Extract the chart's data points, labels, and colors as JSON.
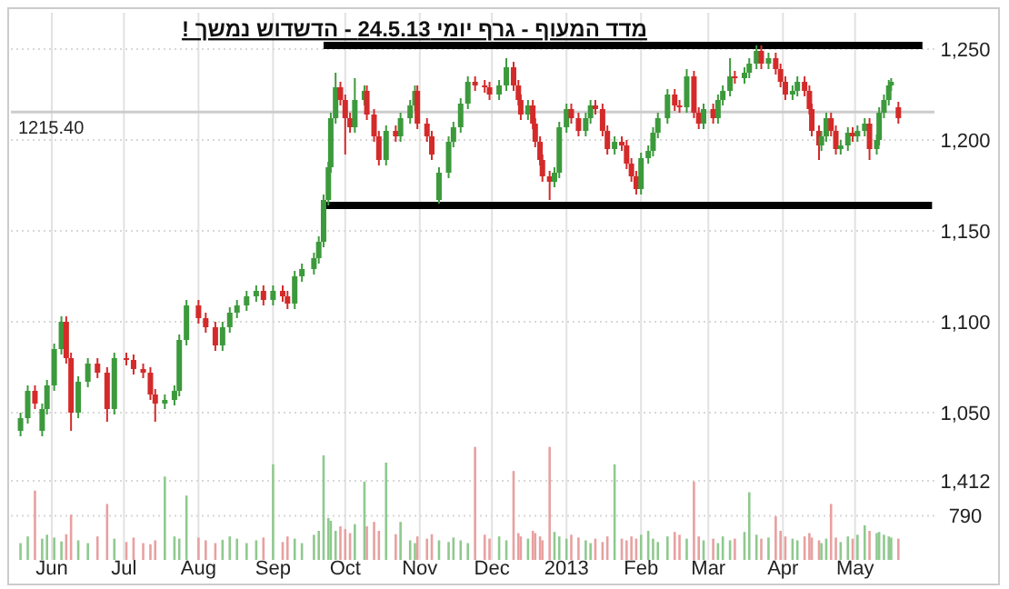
{
  "chart_data": [
    {
      "type": "candlestick",
      "title": "מדד המעוף - גרף יומי 24.5.13 - הדשדוש נמשך !",
      "x": [
        "2012-05-23",
        "2012-05-26",
        "2012-05-29",
        "2012-06-01",
        "2012-06-03",
        "2012-06-06",
        "2012-06-09",
        "2012-06-11",
        "2012-06-13",
        "2012-06-16",
        "2012-06-20",
        "2012-06-24",
        "2012-06-28",
        "2012-07-01",
        "2012-07-06",
        "2012-07-09",
        "2012-07-13",
        "2012-07-16",
        "2012-07-18",
        "2012-07-22",
        "2012-07-26",
        "2012-07-28",
        "2012-07-31",
        "2012-08-05",
        "2012-08-08",
        "2012-08-12",
        "2012-08-15",
        "2012-08-18",
        "2012-08-21",
        "2012-08-25",
        "2012-08-29",
        "2012-09-01",
        "2012-09-05",
        "2012-09-09",
        "2012-09-11",
        "2012-09-14",
        "2012-09-17",
        "2012-09-22",
        "2012-09-24",
        "2012-09-26",
        "2012-09-28",
        "2012-09-29",
        "2012-10-01",
        "2012-10-03",
        "2012-10-05",
        "2012-10-07",
        "2012-10-09",
        "2012-10-13",
        "2012-10-14",
        "2012-10-17",
        "2012-10-19",
        "2012-10-22",
        "2012-10-26",
        "2012-10-28",
        "2012-11-01",
        "2012-11-03",
        "2012-11-04",
        "2012-11-08",
        "2012-11-10",
        "2012-11-13",
        "2012-11-17",
        "2012-11-19",
        "2012-11-22",
        "2012-11-25",
        "2012-11-28",
        "2012-12-02",
        "2012-12-04",
        "2012-12-08",
        "2012-12-11",
        "2012-12-14",
        "2012-12-16",
        "2012-12-17",
        "2012-12-20",
        "2012-12-22",
        "2012-12-23",
        "2012-12-25",
        "2012-12-26",
        "2012-12-29",
        "2012-12-31",
        "2013-01-02",
        "2013-01-05",
        "2013-01-07",
        "2013-01-10",
        "2013-01-13",
        "2013-01-15",
        "2013-01-17",
        "2013-01-20",
        "2013-01-22",
        "2013-01-25",
        "2013-01-28",
        "2013-01-30",
        "2013-02-01",
        "2013-02-03",
        "2013-02-05",
        "2013-02-08",
        "2013-02-10",
        "2013-02-12",
        "2013-02-16",
        "2013-02-19",
        "2013-02-21",
        "2013-02-24",
        "2013-02-27",
        "2013-03-01",
        "2013-03-03",
        "2013-03-07",
        "2013-03-09",
        "2013-03-11",
        "2013-03-14",
        "2013-03-16",
        "2013-03-20",
        "2013-03-22",
        "2013-03-25",
        "2013-03-27",
        "2013-03-30",
        "2013-04-02",
        "2013-04-04",
        "2013-04-06",
        "2013-04-09",
        "2013-04-11",
        "2013-04-14",
        "2013-04-16",
        "2013-04-17",
        "2013-04-20",
        "2013-04-21",
        "2013-04-23",
        "2013-04-25",
        "2013-04-27",
        "2013-04-29",
        "2013-05-02",
        "2013-05-04",
        "2013-05-06",
        "2013-05-09",
        "2013-05-11",
        "2013-05-14",
        "2013-05-15",
        "2013-05-17",
        "2013-05-19",
        "2013-05-20",
        "2013-05-23"
      ],
      "ohlc": [
        [
          1040,
          1050,
          1037,
          1047
        ],
        [
          1047,
          1065,
          1044,
          1062
        ],
        [
          1062,
          1065,
          1052,
          1055
        ],
        [
          1040,
          1055,
          1037,
          1052
        ],
        [
          1052,
          1068,
          1049,
          1065
        ],
        [
          1065,
          1088,
          1062,
          1085
        ],
        [
          1085,
          1103,
          1082,
          1100
        ],
        [
          1100,
          1103,
          1077,
          1080
        ],
        [
          1080,
          1083,
          1040,
          1050
        ],
        [
          1050,
          1070,
          1047,
          1067
        ],
        [
          1067,
          1080,
          1064,
          1077
        ],
        [
          1077,
          1080,
          1069,
          1072
        ],
        [
          1072,
          1075,
          1045,
          1052
        ],
        [
          1052,
          1083,
          1049,
          1080
        ],
        [
          1080,
          1083,
          1076,
          1079
        ],
        [
          1079,
          1082,
          1071,
          1074
        ],
        [
          1074,
          1077,
          1069,
          1072
        ],
        [
          1072,
          1075,
          1057,
          1060
        ],
        [
          1060,
          1063,
          1045,
          1055
        ],
        [
          1055,
          1060,
          1052,
          1057
        ],
        [
          1057,
          1065,
          1054,
          1062
        ],
        [
          1062,
          1093,
          1059,
          1090
        ],
        [
          1090,
          1112,
          1087,
          1109
        ],
        [
          1109,
          1112,
          1099,
          1102
        ],
        [
          1102,
          1105,
          1094,
          1097
        ],
        [
          1097,
          1100,
          1084,
          1087
        ],
        [
          1087,
          1100,
          1084,
          1097
        ],
        [
          1097,
          1108,
          1094,
          1105
        ],
        [
          1105,
          1112,
          1102,
          1109
        ],
        [
          1109,
          1117,
          1106,
          1114
        ],
        [
          1114,
          1120,
          1111,
          1117
        ],
        [
          1117,
          1120,
          1109,
          1112
        ],
        [
          1112,
          1120,
          1109,
          1117
        ],
        [
          1117,
          1120,
          1111,
          1114
        ],
        [
          1114,
          1117,
          1107,
          1110
        ],
        [
          1110,
          1128,
          1107,
          1125
        ],
        [
          1125,
          1132,
          1122,
          1129
        ],
        [
          1129,
          1138,
          1126,
          1135
        ],
        [
          1135,
          1147,
          1132,
          1144
        ],
        [
          1144,
          1170,
          1141,
          1167
        ],
        [
          1167,
          1188,
          1164,
          1185
        ],
        [
          1185,
          1215,
          1182,
          1212
        ],
        [
          1212,
          1237,
          1209,
          1229
        ],
        [
          1229,
          1232,
          1219,
          1222
        ],
        [
          1222,
          1225,
          1192,
          1212
        ],
        [
          1212,
          1215,
          1204,
          1207
        ],
        [
          1207,
          1234,
          1204,
          1222
        ],
        [
          1222,
          1230,
          1219,
          1227
        ],
        [
          1227,
          1230,
          1211,
          1214
        ],
        [
          1214,
          1217,
          1199,
          1202
        ],
        [
          1202,
          1205,
          1186,
          1189
        ],
        [
          1189,
          1208,
          1186,
          1205
        ],
        [
          1205,
          1208,
          1199,
          1202
        ],
        [
          1202,
          1215,
          1199,
          1212
        ],
        [
          1212,
          1222,
          1209,
          1219
        ],
        [
          1219,
          1230,
          1216,
          1227
        ],
        [
          1227,
          1230,
          1206,
          1209
        ],
        [
          1209,
          1212,
          1199,
          1202
        ],
        [
          1202,
          1205,
          1189,
          1192
        ],
        [
          1167,
          1185,
          1165,
          1182
        ],
        [
          1182,
          1202,
          1179,
          1199
        ],
        [
          1199,
          1210,
          1196,
          1207
        ],
        [
          1207,
          1223,
          1204,
          1220
        ],
        [
          1220,
          1235,
          1217,
          1232
        ],
        [
          1232,
          1235,
          1227,
          1230
        ],
        [
          1230,
          1233,
          1226,
          1229
        ],
        [
          1229,
          1232,
          1222,
          1225
        ],
        [
          1225,
          1233,
          1222,
          1230
        ],
        [
          1230,
          1245,
          1227,
          1240
        ],
        [
          1240,
          1243,
          1227,
          1230
        ],
        [
          1230,
          1233,
          1219,
          1222
        ],
        [
          1222,
          1225,
          1211,
          1214
        ],
        [
          1214,
          1222,
          1211,
          1219
        ],
        [
          1219,
          1222,
          1206,
          1209
        ],
        [
          1209,
          1212,
          1196,
          1199
        ],
        [
          1199,
          1202,
          1186,
          1189
        ],
        [
          1189,
          1192,
          1177,
          1180
        ],
        [
          1180,
          1183,
          1167,
          1177
        ],
        [
          1177,
          1185,
          1174,
          1182
        ],
        [
          1182,
          1210,
          1179,
          1207
        ],
        [
          1207,
          1220,
          1204,
          1217
        ],
        [
          1217,
          1220,
          1209,
          1212
        ],
        [
          1212,
          1215,
          1202,
          1205
        ],
        [
          1205,
          1215,
          1202,
          1212
        ],
        [
          1212,
          1222,
          1209,
          1219
        ],
        [
          1219,
          1222,
          1214,
          1217
        ],
        [
          1217,
          1220,
          1202,
          1205
        ],
        [
          1205,
          1208,
          1192,
          1195
        ],
        [
          1195,
          1202,
          1192,
          1199
        ],
        [
          1199,
          1202,
          1194,
          1197
        ],
        [
          1197,
          1200,
          1184,
          1187
        ],
        [
          1187,
          1190,
          1177,
          1180
        ],
        [
          1180,
          1183,
          1170,
          1173
        ],
        [
          1173,
          1193,
          1170,
          1190
        ],
        [
          1190,
          1197,
          1187,
          1194
        ],
        [
          1194,
          1207,
          1191,
          1204
        ],
        [
          1204,
          1215,
          1201,
          1212
        ],
        [
          1212,
          1228,
          1209,
          1225
        ],
        [
          1225,
          1228,
          1216,
          1219
        ],
        [
          1219,
          1222,
          1215,
          1218
        ],
        [
          1218,
          1239,
          1215,
          1235
        ],
        [
          1235,
          1238,
          1212,
          1215
        ],
        [
          1215,
          1218,
          1206,
          1209
        ],
        [
          1209,
          1220,
          1206,
          1217
        ],
        [
          1217,
          1220,
          1209,
          1212
        ],
        [
          1212,
          1225,
          1209,
          1222
        ],
        [
          1222,
          1230,
          1219,
          1227
        ],
        [
          1227,
          1245,
          1224,
          1235
        ],
        [
          1235,
          1238,
          1231,
          1234
        ],
        [
          1234,
          1240,
          1231,
          1237
        ],
        [
          1237,
          1245,
          1234,
          1242
        ],
        [
          1242,
          1252,
          1239,
          1249
        ],
        [
          1249,
          1252,
          1239,
          1242
        ],
        [
          1242,
          1248,
          1239,
          1245
        ],
        [
          1245,
          1248,
          1236,
          1239
        ],
        [
          1239,
          1242,
          1229,
          1232
        ],
        [
          1232,
          1235,
          1222,
          1225
        ],
        [
          1225,
          1230,
          1222,
          1227
        ],
        [
          1227,
          1235,
          1224,
          1232
        ],
        [
          1232,
          1235,
          1224,
          1227
        ],
        [
          1227,
          1230,
          1214,
          1217
        ],
        [
          1217,
          1220,
          1202,
          1205
        ],
        [
          1205,
          1208,
          1189,
          1197
        ],
        [
          1197,
          1205,
          1194,
          1202
        ],
        [
          1202,
          1215,
          1199,
          1212
        ],
        [
          1212,
          1215,
          1202,
          1205
        ],
        [
          1205,
          1208,
          1192,
          1195
        ],
        [
          1195,
          1200,
          1192,
          1197
        ],
        [
          1197,
          1207,
          1194,
          1204
        ],
        [
          1204,
          1207,
          1199,
          1202
        ],
        [
          1202,
          1208,
          1199,
          1205
        ],
        [
          1205,
          1212,
          1202,
          1209
        ],
        [
          1209,
          1212,
          1189,
          1195
        ],
        [
          1195,
          1203,
          1192,
          1200
        ],
        [
          1200,
          1218,
          1197,
          1215
        ],
        [
          1215,
          1225,
          1212,
          1222
        ],
        [
          1222,
          1233,
          1219,
          1230
        ],
        [
          1230,
          1234,
          1227,
          1232
        ],
        [
          1218,
          1221,
          1209,
          1212
        ]
      ],
      "colors": [
        "#3c9a3c",
        "#3c9a3c",
        "#d42a2a",
        "#3c9a3c",
        "#3c9a3c",
        "#3c9a3c",
        "#3c9a3c",
        "#d42a2a",
        "#d42a2a",
        "#3c9a3c",
        "#3c9a3c",
        "#d42a2a",
        "#d42a2a",
        "#3c9a3c",
        "#d42a2a",
        "#d42a2a",
        "#d42a2a",
        "#d42a2a",
        "#d42a2a",
        "#3c9a3c",
        "#3c9a3c",
        "#3c9a3c",
        "#3c9a3c",
        "#d42a2a",
        "#d42a2a",
        "#d42a2a",
        "#3c9a3c",
        "#3c9a3c",
        "#3c9a3c",
        "#3c9a3c",
        "#3c9a3c",
        "#d42a2a",
        "#3c9a3c",
        "#d42a2a",
        "#d42a2a",
        "#3c9a3c",
        "#3c9a3c",
        "#3c9a3c",
        "#3c9a3c",
        "#3c9a3c",
        "#3c9a3c",
        "#3c9a3c",
        "#3c9a3c",
        "#d42a2a",
        "#d42a2a",
        "#d42a2a",
        "#3c9a3c",
        "#3c9a3c",
        "#d42a2a",
        "#d42a2a",
        "#d42a2a",
        "#3c9a3c",
        "#d42a2a",
        "#3c9a3c",
        "#3c9a3c",
        "#3c9a3c",
        "#d42a2a",
        "#d42a2a",
        "#d42a2a",
        "#3c9a3c",
        "#3c9a3c",
        "#3c9a3c",
        "#3c9a3c",
        "#3c9a3c",
        "#d42a2a",
        "#d42a2a",
        "#d42a2a",
        "#3c9a3c",
        "#3c9a3c",
        "#d42a2a",
        "#d42a2a",
        "#d42a2a",
        "#3c9a3c",
        "#d42a2a",
        "#d42a2a",
        "#d42a2a",
        "#d42a2a",
        "#d42a2a",
        "#3c9a3c",
        "#3c9a3c",
        "#3c9a3c",
        "#d42a2a",
        "#d42a2a",
        "#3c9a3c",
        "#3c9a3c",
        "#d42a2a",
        "#d42a2a",
        "#d42a2a",
        "#3c9a3c",
        "#d42a2a",
        "#d42a2a",
        "#d42a2a",
        "#d42a2a",
        "#3c9a3c",
        "#3c9a3c",
        "#3c9a3c",
        "#3c9a3c",
        "#3c9a3c",
        "#d42a2a",
        "#d42a2a",
        "#3c9a3c",
        "#d42a2a",
        "#d42a2a",
        "#3c9a3c",
        "#d42a2a",
        "#3c9a3c",
        "#3c9a3c",
        "#3c9a3c",
        "#d42a2a",
        "#3c9a3c",
        "#3c9a3c",
        "#3c9a3c",
        "#d42a2a",
        "#3c9a3c",
        "#d42a2a",
        "#d42a2a",
        "#d42a2a",
        "#3c9a3c",
        "#3c9a3c",
        "#d42a2a",
        "#d42a2a",
        "#d42a2a",
        "#d42a2a",
        "#3c9a3c",
        "#3c9a3c",
        "#d42a2a",
        "#d42a2a",
        "#3c9a3c",
        "#3c9a3c",
        "#d42a2a",
        "#3c9a3c",
        "#3c9a3c",
        "#d42a2a",
        "#3c9a3c",
        "#3c9a3c",
        "#3c9a3c",
        "#3c9a3c",
        "#3c9a3c",
        "#d42a2a"
      ],
      "series": [
        {
          "type": "line",
          "x": [
            "2012-09-26",
            "2013-06-02"
          ],
          "values": [
            1252,
            1252
          ],
          "color": "#000000"
        },
        {
          "type": "line",
          "x": [
            "2012-09-25",
            "2013-06-06"
          ],
          "values": [
            1164,
            1164
          ],
          "color": "#000000"
        }
      ],
      "ref_lines": [
        {
          "axis": "y",
          "value": 1215.4,
          "label": "1215.40",
          "color": "#cccccc"
        }
      ],
      "xlim": [
        "2012-05-19",
        "2013-06-07"
      ],
      "ylim": [
        1035,
        1270
      ],
      "xticks": [
        {
          "value": "2012-06-05",
          "label": null
        },
        {
          "value": "2012-07-05",
          "label": null
        },
        {
          "value": "2012-08-05",
          "label": null
        },
        {
          "value": "2012-09-05",
          "label": null
        },
        {
          "value": "2012-10-05",
          "label": null
        },
        {
          "value": "2012-11-05",
          "label": null
        },
        {
          "value": "2012-12-05",
          "label": null
        },
        {
          "value": "2013-01-05",
          "label": null
        },
        {
          "value": "2013-02-05",
          "label": null
        },
        {
          "value": "2013-03-05",
          "label": null
        },
        {
          "value": "2013-04-05",
          "label": null
        },
        {
          "value": "2013-05-05",
          "label": null
        }
      ],
      "yticks": [
        {
          "value": 1050,
          "label": "1,050"
        },
        {
          "value": 1100,
          "label": "1,100"
        },
        {
          "value": 1150,
          "label": "1,150"
        },
        {
          "value": 1200,
          "label": "1,200"
        },
        {
          "value": 1250,
          "label": "1,250"
        }
      ],
      "grid": true,
      "tick_labels": "y"
    },
    {
      "type": "bar",
      "x": [
        "2012-05-23",
        "2012-05-26",
        "2012-05-29",
        "2012-06-01",
        "2012-06-03",
        "2012-06-06",
        "2012-06-09",
        "2012-06-11",
        "2012-06-13",
        "2012-06-16",
        "2012-06-20",
        "2012-06-24",
        "2012-06-28",
        "2012-07-01",
        "2012-07-06",
        "2012-07-09",
        "2012-07-13",
        "2012-07-16",
        "2012-07-18",
        "2012-07-22",
        "2012-07-26",
        "2012-07-28",
        "2012-07-31",
        "2012-08-05",
        "2012-08-08",
        "2012-08-12",
        "2012-08-15",
        "2012-08-18",
        "2012-08-21",
        "2012-08-25",
        "2012-08-29",
        "2012-09-01",
        "2012-09-05",
        "2012-09-09",
        "2012-09-11",
        "2012-09-14",
        "2012-09-17",
        "2012-09-22",
        "2012-09-24",
        "2012-09-26",
        "2012-09-28",
        "2012-09-29",
        "2012-10-01",
        "2012-10-03",
        "2012-10-05",
        "2012-10-07",
        "2012-10-09",
        "2012-10-13",
        "2012-10-14",
        "2012-10-17",
        "2012-10-19",
        "2012-10-22",
        "2012-10-26",
        "2012-10-28",
        "2012-11-01",
        "2012-11-03",
        "2012-11-04",
        "2012-11-08",
        "2012-11-10",
        "2012-11-13",
        "2012-11-17",
        "2012-11-19",
        "2012-11-22",
        "2012-11-25",
        "2012-11-28",
        "2012-12-02",
        "2012-12-04",
        "2012-12-08",
        "2012-12-11",
        "2012-12-14",
        "2012-12-16",
        "2012-12-17",
        "2012-12-20",
        "2012-12-22",
        "2012-12-23",
        "2012-12-25",
        "2012-12-26",
        "2012-12-29",
        "2012-12-31",
        "2013-01-02",
        "2013-01-05",
        "2013-01-07",
        "2013-01-10",
        "2013-01-13",
        "2013-01-15",
        "2013-01-17",
        "2013-01-20",
        "2013-01-22",
        "2013-01-25",
        "2013-01-28",
        "2013-01-30",
        "2013-02-01",
        "2013-02-03",
        "2013-02-05",
        "2013-02-08",
        "2013-02-10",
        "2013-02-12",
        "2013-02-16",
        "2013-02-19",
        "2013-02-21",
        "2013-02-24",
        "2013-02-27",
        "2013-03-01",
        "2013-03-03",
        "2013-03-07",
        "2013-03-09",
        "2013-03-11",
        "2013-03-14",
        "2013-03-16",
        "2013-03-20",
        "2013-03-22",
        "2013-03-25",
        "2013-03-27",
        "2013-03-30",
        "2013-04-02",
        "2013-04-04",
        "2013-04-06",
        "2013-04-09",
        "2013-04-11",
        "2013-04-14",
        "2013-04-16",
        "2013-04-17",
        "2013-04-20",
        "2013-04-21",
        "2013-04-23",
        "2013-04-25",
        "2013-04-27",
        "2013-04-29",
        "2013-05-02",
        "2013-05-04",
        "2013-05-06",
        "2013-05-09",
        "2013-05-11",
        "2013-05-14",
        "2013-05-15",
        "2013-05-17",
        "2013-05-19",
        "2013-05-20",
        "2013-05-23"
      ],
      "values": [
        300,
        420,
        1240,
        380,
        450,
        400,
        330,
        460,
        810,
        350,
        300,
        420,
        1000,
        380,
        320,
        400,
        300,
        280,
        350,
        1490,
        420,
        380,
        1150,
        400,
        350,
        300,
        360,
        420,
        380,
        300,
        350,
        400,
        1710,
        320,
        420,
        380,
        300,
        450,
        520,
        1870,
        750,
        700,
        520,
        600,
        550,
        480,
        640,
        1400,
        600,
        680,
        520,
        1740,
        460,
        680,
        350,
        300,
        420,
        380,
        460,
        350,
        320,
        400,
        350,
        300,
        2020,
        450,
        380,
        420,
        350,
        1590,
        480,
        420,
        380,
        520,
        480,
        420,
        350,
        2020,
        500,
        420,
        380,
        450,
        400,
        350,
        300,
        380,
        320,
        420,
        1710,
        380,
        350,
        420,
        380,
        450,
        520,
        380,
        320,
        420,
        500,
        450,
        380,
        1400,
        420,
        350,
        380,
        300,
        420,
        350,
        380,
        500,
        1210,
        450,
        380,
        400,
        780,
        520,
        420,
        380,
        350,
        420,
        480,
        400,
        350,
        300,
        380,
        1000,
        400,
        320,
        420,
        380,
        450,
        620,
        520,
        480,
        500,
        450,
        420,
        400,
        380
      ],
      "colors": [
        "#8fc98f",
        "#8fc98f",
        "#e8a0a0",
        "#8fc98f",
        "#8fc98f",
        "#8fc98f",
        "#8fc98f",
        "#e8a0a0",
        "#e8a0a0",
        "#8fc98f",
        "#8fc98f",
        "#e8a0a0",
        "#e8a0a0",
        "#8fc98f",
        "#e8a0a0",
        "#e8a0a0",
        "#e8a0a0",
        "#e8a0a0",
        "#e8a0a0",
        "#8fc98f",
        "#8fc98f",
        "#8fc98f",
        "#8fc98f",
        "#e8a0a0",
        "#e8a0a0",
        "#e8a0a0",
        "#8fc98f",
        "#8fc98f",
        "#8fc98f",
        "#8fc98f",
        "#8fc98f",
        "#e8a0a0",
        "#8fc98f",
        "#e8a0a0",
        "#e8a0a0",
        "#8fc98f",
        "#8fc98f",
        "#8fc98f",
        "#8fc98f",
        "#8fc98f",
        "#8fc98f",
        "#8fc98f",
        "#8fc98f",
        "#e8a0a0",
        "#e8a0a0",
        "#e8a0a0",
        "#8fc98f",
        "#8fc98f",
        "#e8a0a0",
        "#e8a0a0",
        "#e8a0a0",
        "#8fc98f",
        "#e8a0a0",
        "#8fc98f",
        "#8fc98f",
        "#8fc98f",
        "#e8a0a0",
        "#e8a0a0",
        "#e8a0a0",
        "#8fc98f",
        "#8fc98f",
        "#8fc98f",
        "#8fc98f",
        "#8fc98f",
        "#e8a0a0",
        "#e8a0a0",
        "#e8a0a0",
        "#8fc98f",
        "#8fc98f",
        "#e8a0a0",
        "#e8a0a0",
        "#e8a0a0",
        "#8fc98f",
        "#e8a0a0",
        "#e8a0a0",
        "#e8a0a0",
        "#e8a0a0",
        "#e8a0a0",
        "#8fc98f",
        "#8fc98f",
        "#8fc98f",
        "#e8a0a0",
        "#e8a0a0",
        "#8fc98f",
        "#8fc98f",
        "#e8a0a0",
        "#e8a0a0",
        "#e8a0a0",
        "#8fc98f",
        "#e8a0a0",
        "#e8a0a0",
        "#e8a0a0",
        "#e8a0a0",
        "#8fc98f",
        "#8fc98f",
        "#8fc98f",
        "#8fc98f",
        "#8fc98f",
        "#e8a0a0",
        "#e8a0a0",
        "#8fc98f",
        "#e8a0a0",
        "#e8a0a0",
        "#8fc98f",
        "#e8a0a0",
        "#8fc98f",
        "#8fc98f",
        "#8fc98f",
        "#e8a0a0",
        "#8fc98f",
        "#8fc98f",
        "#8fc98f",
        "#e8a0a0",
        "#8fc98f",
        "#e8a0a0",
        "#e8a0a0",
        "#e8a0a0",
        "#8fc98f",
        "#8fc98f",
        "#e8a0a0",
        "#e8a0a0",
        "#e8a0a0",
        "#e8a0a0",
        "#8fc98f",
        "#8fc98f",
        "#e8a0a0",
        "#e8a0a0",
        "#8fc98f",
        "#8fc98f",
        "#e8a0a0",
        "#8fc98f",
        "#8fc98f",
        "#e8a0a0",
        "#8fc98f",
        "#8fc98f",
        "#8fc98f",
        "#8fc98f",
        "#8fc98f",
        "#e8a0a0"
      ],
      "xlim": [
        "2012-05-19",
        "2013-06-07"
      ],
      "ylim": [
        0,
        2145
      ],
      "xticks": [
        {
          "value": "2012-06-05",
          "label": "Jun"
        },
        {
          "value": "2012-07-05",
          "label": "Jul"
        },
        {
          "value": "2012-08-05",
          "label": "Aug"
        },
        {
          "value": "2012-09-05",
          "label": "Sep"
        },
        {
          "value": "2012-10-05",
          "label": "Oct"
        },
        {
          "value": "2012-11-05",
          "label": "Nov"
        },
        {
          "value": "2012-12-05",
          "label": "Dec"
        },
        {
          "value": "2013-01-05",
          "label": "2013"
        },
        {
          "value": "2013-02-05",
          "label": "Feb"
        },
        {
          "value": "2013-03-05",
          "label": "Mar"
        },
        {
          "value": "2013-04-05",
          "label": "Apr"
        },
        {
          "value": "2013-05-05",
          "label": "May"
        }
      ],
      "yticks": [
        {
          "value": 790,
          "label": "790"
        },
        {
          "value": 1412,
          "label": "1,412"
        }
      ],
      "grid": true
    }
  ]
}
